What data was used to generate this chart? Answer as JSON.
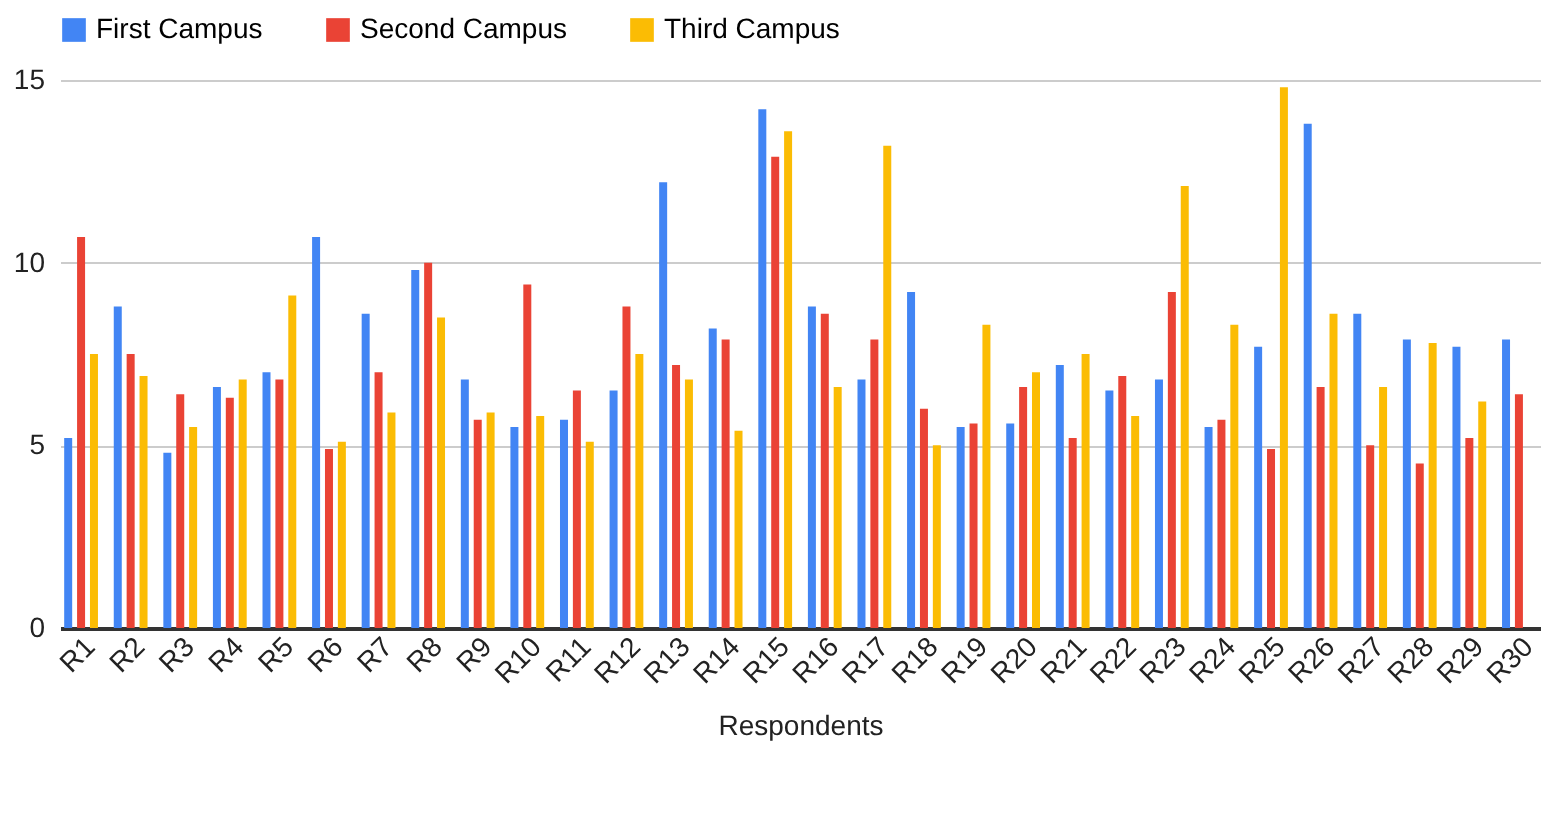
{
  "chart_data": {
    "type": "bar",
    "xlabel": "Respondents",
    "categories": [
      "R1",
      "R2",
      "R3",
      "R4",
      "R5",
      "R6",
      "R7",
      "R8",
      "R9",
      "R10",
      "R11",
      "R12",
      "R13",
      "R14",
      "R15",
      "R16",
      "R17",
      "R18",
      "R19",
      "R20",
      "R21",
      "R22",
      "R23",
      "R24",
      "R25",
      "R26",
      "R27",
      "R28",
      "R29",
      "R30"
    ],
    "series": [
      {
        "name": "First Campus",
        "color": "#4285f4",
        "values": [
          5.2,
          8.8,
          4.8,
          6.6,
          7.0,
          10.7,
          8.6,
          9.8,
          6.8,
          5.5,
          5.7,
          6.5,
          12.2,
          8.2,
          14.2,
          8.8,
          6.8,
          9.2,
          5.5,
          5.6,
          7.2,
          6.5,
          6.8,
          5.5,
          7.7,
          13.8,
          8.6,
          7.9,
          7.7,
          7.9
        ]
      },
      {
        "name": "Second Campus",
        "color": "#ea4335",
        "values": [
          10.7,
          7.5,
          6.4,
          6.3,
          6.8,
          4.9,
          7.0,
          10.0,
          5.7,
          9.4,
          6.5,
          8.8,
          7.2,
          7.9,
          12.9,
          8.6,
          7.9,
          6.0,
          5.6,
          6.6,
          5.2,
          6.9,
          9.2,
          5.7,
          4.9,
          6.6,
          5.0,
          4.5,
          5.2,
          6.4
        ]
      },
      {
        "name": "Third Campus",
        "color": "#fbbc04",
        "values": [
          7.5,
          6.9,
          5.5,
          6.8,
          9.1,
          5.1,
          5.9,
          8.5,
          5.9,
          5.8,
          5.1,
          7.5,
          6.8,
          5.4,
          13.6,
          6.6,
          13.2,
          5.0,
          8.3,
          7.0,
          7.5,
          5.8,
          12.1,
          8.3,
          14.8,
          8.6,
          6.6,
          7.8,
          6.2,
          null
        ]
      }
    ],
    "ylim": [
      0,
      15
    ],
    "yticks": [
      0,
      5,
      10,
      15
    ],
    "grid": "y",
    "legend": "top"
  }
}
